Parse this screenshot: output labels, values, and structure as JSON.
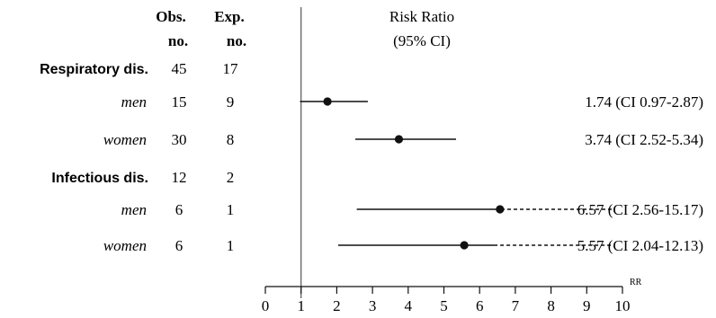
{
  "chart_data": {
    "type": "forest",
    "headers": {
      "obs": [
        "Obs.",
        "no."
      ],
      "exp": [
        "Exp.",
        "no."
      ],
      "rr": [
        "Risk Ratio",
        "(95% CI)"
      ]
    },
    "x_axis_label": "RR",
    "xlim": [
      0,
      10
    ],
    "ticks": [
      "0",
      "1",
      "2",
      "3",
      "4",
      "5",
      "6",
      "7",
      "8",
      "9",
      "10"
    ],
    "reference_line": 1,
    "rows": [
      {
        "name": "Respiratory dis.",
        "style": "group",
        "obs": "45",
        "exp": "17"
      },
      {
        "name": "men",
        "style": "sub",
        "obs": "15",
        "exp": "9",
        "rr": 1.74,
        "ci_low": 0.97,
        "ci_high": 2.87,
        "dashed_from": null,
        "label": "1.74 (CI 0.97-2.87)"
      },
      {
        "name": "women",
        "style": "sub",
        "obs": "30",
        "exp": "8",
        "rr": 3.74,
        "ci_low": 2.52,
        "ci_high": 5.34,
        "dashed_from": null,
        "label": "3.74 (CI 2.52-5.34)"
      },
      {
        "name": "Infectious dis.",
        "style": "group",
        "obs": "12",
        "exp": "2"
      },
      {
        "name": "men",
        "style": "sub",
        "obs": "6",
        "exp": "1",
        "rr": 6.57,
        "ci_low": 2.56,
        "ci_high": 15.17,
        "dashed_from": 6.6,
        "label": "6.57 (CI 2.56-15.17)"
      },
      {
        "name": "women",
        "style": "sub",
        "obs": "6",
        "exp": "1",
        "rr": 5.57,
        "ci_low": 2.04,
        "ci_high": 12.13,
        "dashed_from": 6.4,
        "label": "5.57 (CI 2.04-12.13)"
      }
    ]
  }
}
